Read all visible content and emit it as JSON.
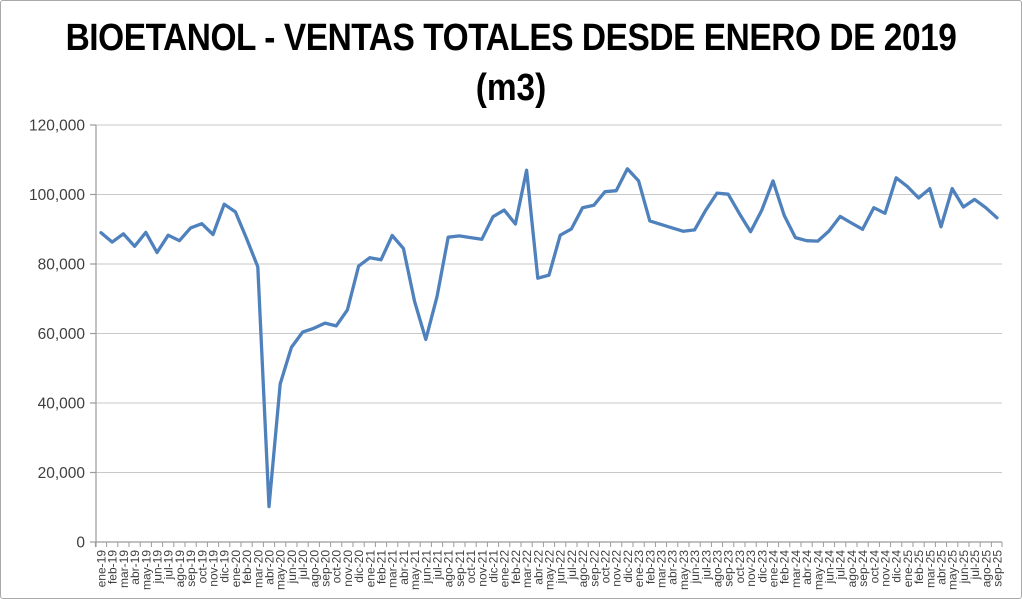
{
  "chart": {
    "title_line1": "BIOETANOL - VENTAS TOTALES DESDE ENERO DE 2019",
    "title_line2": "(m3)"
  },
  "colors": {
    "series_line": "#4F81BD",
    "gridline": "#c9c9c9",
    "axis_line": "#9b9b9b",
    "tick_label": "#3f3f3f",
    "title_text": "#000000",
    "background": "#ffffff",
    "frame_border": "#a9a9a9"
  },
  "chart_data": {
    "type": "line",
    "title": "BIOETANOL - VENTAS TOTALES DESDE ENERO DE 2019 (m3)",
    "xlabel": "",
    "ylabel": "",
    "legend": "none",
    "grid": true,
    "ylim": [
      0,
      120000
    ],
    "ytick_interval": 20000,
    "ytick_labels": [
      "0",
      "20,000",
      "40,000",
      "60,000",
      "80,000",
      "100,000",
      "120,000"
    ],
    "categories": [
      "ene-19",
      "feb-19",
      "mar-19",
      "abr-19",
      "may-19",
      "jun-19",
      "jul-19",
      "ago-19",
      "sep-19",
      "oct-19",
      "nov-19",
      "dic-19",
      "ene-20",
      "feb-20",
      "mar-20",
      "abr-20",
      "may-20",
      "jun-20",
      "jul-20",
      "ago-20",
      "sep-20",
      "oct-20",
      "nov-20",
      "dic-20",
      "ene-21",
      "feb-21",
      "mar-21",
      "abr-21",
      "may-21",
      "jun-21",
      "jul-21",
      "ago-21",
      "sep-21",
      "oct-21",
      "nov-21",
      "dic-21",
      "ene-22",
      "feb-22",
      "mar-22",
      "abr-22",
      "may-22",
      "jun-22",
      "jul-22",
      "ago-22",
      "sep-22",
      "oct-22",
      "nov-22",
      "dic-22",
      "ene-23",
      "feb-23",
      "mar-23",
      "abr-23",
      "may-23",
      "jun-23",
      "jul-23",
      "ago-23",
      "sep-23",
      "oct-23",
      "nov-23",
      "dic-23",
      "ene-24",
      "feb-24",
      "mar-24",
      "abr-24",
      "may-24",
      "jun-24",
      "jul-24",
      "ago-24",
      "sep-24",
      "oct-24",
      "nov-24",
      "dic-24",
      "ene-25",
      "feb-25",
      "mar-25",
      "abr-25",
      "may-25",
      "jun-25",
      "jul-25",
      "ago-25",
      "sep-25"
    ],
    "values": [
      89000,
      86300,
      88700,
      85100,
      89100,
      83300,
      88300,
      86700,
      90400,
      91600,
      88500,
      97200,
      95000,
      87300,
      79200,
      10200,
      45500,
      56000,
      60400,
      61500,
      63000,
      62200,
      66800,
      79400,
      81800,
      81200,
      88200,
      84500,
      69200,
      58300,
      70600,
      87700,
      88100,
      87600,
      87100,
      93600,
      95500,
      91500,
      107000,
      75900,
      76800,
      88300,
      90100,
      96200,
      96900,
      100800,
      101100,
      107400,
      103900,
      92400,
      91400,
      90400,
      89400,
      89800,
      95500,
      100400,
      100100,
      94500,
      89300,
      95500,
      103900,
      94000,
      87600,
      86700,
      86600,
      89500,
      93700,
      91800,
      90000,
      96200,
      94600,
      104800,
      102300,
      99000,
      101700,
      90700,
      101700,
      96400,
      98600,
      96200,
      93300
    ]
  }
}
